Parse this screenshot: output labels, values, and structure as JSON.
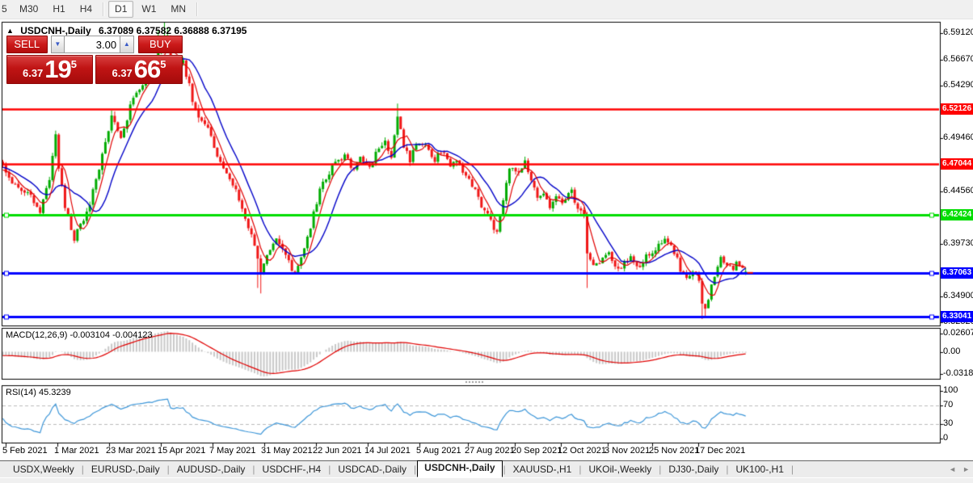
{
  "toolbar": {
    "timeframes": [
      {
        "label": "5",
        "active": false,
        "partial": true
      },
      {
        "label": "M30",
        "active": false
      },
      {
        "label": "H1",
        "active": false
      },
      {
        "label": "H4",
        "active": false
      },
      {
        "label": "D1",
        "active": true
      },
      {
        "label": "W1",
        "active": false
      },
      {
        "label": "MN",
        "active": false
      }
    ]
  },
  "header": {
    "symbol": "USDCNH-,Daily",
    "quotes": "6.37089 6.37582 6.36888 6.37195",
    "collapse_icon": "one-click-panel-toggle"
  },
  "trade": {
    "sell_label": "SELL",
    "buy_label": "BUY",
    "volume": "3.00",
    "sell_price_small": "6.37",
    "sell_price_big": "19",
    "sell_price_sup": "5",
    "buy_price_small": "6.37",
    "buy_price_big": "66",
    "buy_price_sup": "5"
  },
  "indicators": {
    "macd": "MACD(12,26,9) -0.003104 -0.004123",
    "rsi": "RSI(14) 45.3239"
  },
  "price_axis": {
    "ticks": [
      "6.59120",
      "6.56670",
      "6.54290",
      "6.49460",
      "6.44560",
      "6.39730",
      "6.34900",
      "6.32520"
    ]
  },
  "macd_axis": [
    "0.02607",
    "0.00",
    "-0.03187"
  ],
  "rsi_axis": [
    "100",
    "70",
    "30",
    "0"
  ],
  "tabs": {
    "items": [
      "USDX,Weekly",
      "EURUSD-,Daily",
      "AUDUSD-,Daily",
      "USDCHF-,H4",
      "USDCAD-,Daily",
      "USDCNH-,Daily",
      "XAUUSD-,H1",
      "UKOil-,Weekly",
      "DJ30-,Daily",
      "UK100-,H1"
    ],
    "active_index": 5,
    "scroll_left_icon": "◄",
    "scroll_right_icon": "►"
  },
  "chart_data": {
    "type": "candlestick",
    "symbol_period": "USDCNH-,Daily",
    "ohlc_display": {
      "open": "6.37089",
      "high": "6.37582",
      "low": "6.36888",
      "close": "6.37195"
    },
    "visible_price_range": [
      6.3252,
      6.6005
    ],
    "price_ticks": [
      6.5912,
      6.5667,
      6.5429,
      6.4946,
      6.4456,
      6.3973,
      6.349,
      6.3252
    ],
    "hlines": [
      {
        "label": "6.52126",
        "price": 6.52126,
        "color": "#FF0000",
        "width": 2.5,
        "handles": false
      },
      {
        "label": "6.47044",
        "price": 6.47044,
        "color": "#FF0000",
        "width": 2.5,
        "handles": false
      },
      {
        "label": "6.42424",
        "price": 6.42424,
        "color": "#00DD00",
        "width": 3,
        "handles": true
      },
      {
        "label": "6.37063",
        "price": 6.37063,
        "color": "#0000FF",
        "width": 3,
        "handles": true
      },
      {
        "label": "6.33041",
        "price": 6.33041,
        "color": "#0000FF",
        "width": 3,
        "handles": true
      }
    ],
    "dates": [
      "5 Feb 2021",
      "1 Mar 2021",
      "23 Mar 2021",
      "15 Apr 2021",
      "7 May 2021",
      "31 May 2021",
      "22 Jun 2021",
      "14 Jul 2021",
      "5 Aug 2021",
      "27 Aug 2021",
      "20 Sep 2021",
      "12 Oct 2021",
      "3 Nov 2021",
      "25 Nov 2021",
      "17 Dec 2021"
    ],
    "date_x": [
      3,
      67,
      131,
      195,
      259,
      323,
      387,
      451,
      515,
      575,
      633,
      690,
      748,
      803,
      860
    ],
    "bars_visible": 240,
    "close_path_anchors": [
      [
        0,
        6.47
      ],
      [
        3,
        6.452
      ],
      [
        6,
        6.448
      ],
      [
        10,
        6.437
      ],
      [
        12,
        6.425
      ],
      [
        15,
        6.458
      ],
      [
        17,
        6.5
      ],
      [
        18,
        6.468
      ],
      [
        20,
        6.432
      ],
      [
        23,
        6.403
      ],
      [
        27,
        6.425
      ],
      [
        31,
        6.468
      ],
      [
        35,
        6.515
      ],
      [
        38,
        6.498
      ],
      [
        42,
        6.53
      ],
      [
        48,
        6.556
      ],
      [
        50,
        6.574
      ],
      [
        53,
        6.585
      ],
      [
        54,
        6.56
      ],
      [
        58,
        6.565
      ],
      [
        62,
        6.52
      ],
      [
        66,
        6.505
      ],
      [
        70,
        6.47
      ],
      [
        76,
        6.44
      ],
      [
        80,
        6.406
      ],
      [
        83,
        6.37
      ],
      [
        85,
        6.388
      ],
      [
        88,
        6.4
      ],
      [
        90,
        6.394
      ],
      [
        93,
        6.374
      ],
      [
        94,
        6.368
      ],
      [
        97,
        6.392
      ],
      [
        100,
        6.425
      ],
      [
        102,
        6.448
      ],
      [
        105,
        6.462
      ],
      [
        107,
        6.472
      ],
      [
        110,
        6.478
      ],
      [
        113,
        6.465
      ],
      [
        115,
        6.477
      ],
      [
        118,
        6.468
      ],
      [
        120,
        6.48
      ],
      [
        123,
        6.492
      ],
      [
        125,
        6.478
      ],
      [
        127,
        6.515
      ],
      [
        129,
        6.488
      ],
      [
        131,
        6.475
      ],
      [
        133,
        6.49
      ],
      [
        136,
        6.49
      ],
      [
        139,
        6.474
      ],
      [
        141,
        6.483
      ],
      [
        144,
        6.468
      ],
      [
        146,
        6.476
      ],
      [
        149,
        6.458
      ],
      [
        152,
        6.448
      ],
      [
        154,
        6.432
      ],
      [
        157,
        6.418
      ],
      [
        159,
        6.408
      ],
      [
        161,
        6.44
      ],
      [
        163,
        6.468
      ],
      [
        166,
        6.462
      ],
      [
        168,
        6.472
      ],
      [
        171,
        6.448
      ],
      [
        172,
        6.44
      ],
      [
        174,
        6.445
      ],
      [
        176,
        6.428
      ],
      [
        178,
        6.44
      ],
      [
        180,
        6.433
      ],
      [
        183,
        6.446
      ],
      [
        185,
        6.428
      ],
      [
        187,
        6.424
      ],
      [
        188,
        6.388
      ],
      [
        190,
        6.376
      ],
      [
        192,
        6.38
      ],
      [
        194,
        6.39
      ],
      [
        196,
        6.384
      ],
      [
        198,
        6.374
      ],
      [
        200,
        6.38
      ],
      [
        202,
        6.386
      ],
      [
        204,
        6.379
      ],
      [
        205,
        6.374
      ],
      [
        207,
        6.386
      ],
      [
        210,
        6.392
      ],
      [
        211,
        6.398
      ],
      [
        213,
        6.401
      ],
      [
        215,
        6.394
      ],
      [
        217,
        6.384
      ],
      [
        218,
        6.374
      ],
      [
        220,
        6.369
      ],
      [
        222,
        6.372
      ],
      [
        224,
        6.366
      ],
      [
        225,
        6.342
      ],
      [
        226,
        6.336
      ],
      [
        228,
        6.36
      ],
      [
        230,
        6.376
      ],
      [
        231,
        6.386
      ],
      [
        232,
        6.38
      ],
      [
        233,
        6.378
      ],
      [
        235,
        6.374
      ],
      [
        236,
        6.381
      ],
      [
        237,
        6.377
      ],
      [
        239,
        6.372
      ]
    ],
    "wick_events": [
      {
        "day": 23,
        "low": 6.398
      },
      {
        "day": 50,
        "high": 6.593
      },
      {
        "day": 52,
        "high": 6.601
      },
      {
        "day": 53,
        "high": 6.596
      },
      {
        "day": 82,
        "low": 6.357
      },
      {
        "day": 83,
        "low": 6.352
      },
      {
        "day": 127,
        "high": 6.5262
      },
      {
        "day": 188,
        "low": 6.357
      },
      {
        "day": 225,
        "low": 6.3285
      },
      {
        "day": 226,
        "low": 6.331
      }
    ],
    "prehistory": {
      "days": 45,
      "start": 6.502,
      "end": 6.463
    },
    "moving_averages": [
      {
        "name": "fast-ma",
        "period": 5,
        "color": "#E00000"
      },
      {
        "name": "slow-ma",
        "period": 12,
        "color": "#0000C8"
      }
    ],
    "macd": {
      "fast": 12,
      "slow": 26,
      "signal": 9,
      "value": -0.003104,
      "signal_value": -0.004123,
      "range": [
        -0.03187,
        0.02607
      ],
      "histogram_color": "#C8C8C8",
      "signal_color": "#E00000"
    },
    "rsi": {
      "period": 14,
      "value": 45.3239,
      "levels": [
        30,
        70
      ],
      "range": [
        0,
        100
      ],
      "color": "#3D96D8"
    },
    "colors": {
      "bull": "#00AB00",
      "bear": "#F01616",
      "background": "#FFFFFF",
      "border": "#000000"
    }
  }
}
